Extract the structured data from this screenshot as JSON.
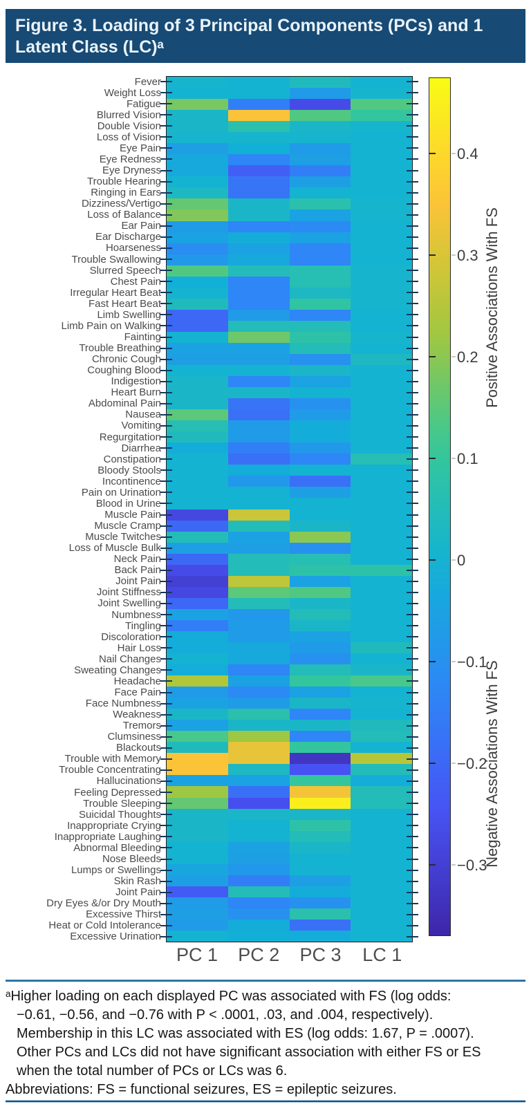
{
  "header": {
    "title_line1": "Figure 3. Loading of 3 Principal Components (PCs) and 1",
    "title_line2": "Latent Class (LC)ᵃ"
  },
  "chart_data": {
    "type": "heatmap",
    "title": "Loading of 3 Principal Components (PCs) and 1 Latent Class (LC)",
    "columns": [
      "PC 1",
      "PC 2",
      "PC 3",
      "LC 1"
    ],
    "rows": [
      "Fever",
      "Weight Loss",
      "Fatigue",
      "Blurred Vision",
      "Double Vision",
      "Loss of Vision",
      "Eye Pain",
      "Eye Redness",
      "Eye Dryness",
      "Trouble Hearing",
      "Ringing in Ears",
      "Dizziness/Vertigo",
      "Loss of Balance",
      "Ear Pain",
      "Ear Discharge",
      "Hoarseness",
      "Trouble Swallowing",
      "Slurred Speech",
      "Chest Pain",
      "Irregular Heart Beat",
      "Fast Heart Beat",
      "Limb Swelling",
      "Limb Pain on Walking",
      "Fainting",
      "Trouble Breathing",
      "Chronic Cough",
      "Coughing Blood",
      "Indigestion",
      "Heart Burn",
      "Abdominal Pain",
      "Nausea",
      "Vomiting",
      "Regurgitation",
      "Diarrhea",
      "Constipation",
      "Bloody Stools",
      "Incontinence",
      "Pain on Urination",
      "Blood in Urine",
      "Muscle Pain",
      "Muscle Cramp",
      "Muscle Twitches",
      "Loss of Muscle Bulk",
      "Neck Pain",
      "Back Pain",
      "Joint Pain",
      "Joint Stiffness",
      "Joint Swelling",
      "Numbness",
      "Tingling",
      "Discoloration",
      "Hair Loss",
      "Nail Changes",
      "Sweating Changes",
      "Headache",
      "Face Pain",
      "Face Numbness",
      "Weakness",
      "Tremors",
      "Clumsiness",
      "Blackouts",
      "Trouble with Memory",
      "Trouble Concentrating",
      "Hallucinations",
      "Feeling Depressed",
      "Trouble Sleeping",
      "Suicidal Thoughts",
      "Inappropriate Crying",
      "Inappropriate Laughing",
      "Abnormal Bleeding",
      "Nose Bleeds",
      "Lumps or Swellings",
      "Skin Rash",
      "Joint Pain",
      "Dry Eyes &/or Dry Mouth",
      "Excessive Thirst",
      "Heat or Cold Intolerance",
      "Excessive Urination"
    ],
    "values": [
      [
        0.01,
        0.0,
        0.04,
        0.0
      ],
      [
        0.0,
        0.0,
        -0.07,
        0.01
      ],
      [
        0.18,
        -0.15,
        -0.27,
        0.14
      ],
      [
        0.02,
        0.35,
        0.14,
        0.1
      ],
      [
        0.02,
        0.07,
        0.02,
        0.01
      ],
      [
        0.01,
        0.01,
        0.01,
        0.0
      ],
      [
        -0.06,
        -0.01,
        -0.07,
        0.0
      ],
      [
        -0.03,
        -0.13,
        -0.06,
        0.0
      ],
      [
        -0.03,
        -0.22,
        -0.15,
        0.0
      ],
      [
        0.0,
        -0.17,
        -0.06,
        0.0
      ],
      [
        0.03,
        -0.17,
        0.0,
        0.0
      ],
      [
        0.16,
        0.02,
        0.07,
        0.01
      ],
      [
        0.19,
        0.02,
        -0.05,
        0.01
      ],
      [
        -0.07,
        -0.13,
        -0.12,
        0.0
      ],
      [
        -0.05,
        -0.02,
        -0.05,
        0.0
      ],
      [
        -0.11,
        -0.05,
        -0.13,
        0.0
      ],
      [
        -0.08,
        -0.03,
        -0.13,
        0.0
      ],
      [
        0.14,
        0.05,
        0.06,
        0.01
      ],
      [
        -0.01,
        -0.13,
        0.06,
        0.01
      ],
      [
        0.0,
        -0.13,
        0.03,
        0.01
      ],
      [
        0.04,
        -0.13,
        0.09,
        0.01
      ],
      [
        -0.2,
        -0.07,
        -0.13,
        0.0
      ],
      [
        -0.2,
        0.05,
        0.05,
        0.0
      ],
      [
        0.0,
        0.17,
        0.08,
        0.01
      ],
      [
        -0.05,
        -0.05,
        0.05,
        0.0
      ],
      [
        -0.06,
        -0.06,
        -0.1,
        0.03
      ],
      [
        0.0,
        0.0,
        0.02,
        0.0
      ],
      [
        0.02,
        -0.13,
        -0.05,
        0.0
      ],
      [
        0.02,
        0.02,
        0.0,
        0.0
      ],
      [
        0.02,
        -0.17,
        -0.1,
        0.0
      ],
      [
        0.15,
        -0.18,
        -0.07,
        0.0
      ],
      [
        0.06,
        -0.07,
        -0.02,
        0.0
      ],
      [
        0.04,
        -0.07,
        -0.02,
        0.0
      ],
      [
        -0.02,
        -0.15,
        -0.08,
        0.0
      ],
      [
        0.0,
        -0.18,
        -0.13,
        0.06
      ],
      [
        0.0,
        -0.02,
        0.0,
        0.0
      ],
      [
        0.0,
        -0.08,
        -0.18,
        0.0
      ],
      [
        0.0,
        0.0,
        -0.06,
        0.0
      ],
      [
        0.0,
        0.0,
        0.0,
        0.0
      ],
      [
        -0.28,
        0.28,
        0.0,
        0.0
      ],
      [
        -0.2,
        0.05,
        0.02,
        0.0
      ],
      [
        0.05,
        -0.05,
        0.2,
        0.0
      ],
      [
        -0.06,
        -0.06,
        -0.1,
        0.0
      ],
      [
        -0.2,
        0.05,
        0.06,
        0.0
      ],
      [
        -0.27,
        0.05,
        0.08,
        0.08
      ],
      [
        -0.3,
        0.26,
        -0.05,
        0.0
      ],
      [
        -0.28,
        0.15,
        0.14,
        0.0
      ],
      [
        -0.2,
        0.05,
        0.02,
        0.0
      ],
      [
        -0.05,
        -0.08,
        0.05,
        0.0
      ],
      [
        -0.15,
        -0.07,
        0.02,
        0.0
      ],
      [
        -0.02,
        -0.07,
        -0.05,
        0.0
      ],
      [
        -0.02,
        -0.03,
        -0.07,
        0.04
      ],
      [
        0.0,
        -0.03,
        -0.1,
        0.0
      ],
      [
        -0.02,
        -0.13,
        0.05,
        0.02
      ],
      [
        0.24,
        -0.05,
        0.1,
        0.13
      ],
      [
        -0.07,
        -0.12,
        -0.05,
        0.0
      ],
      [
        -0.05,
        -0.07,
        0.02,
        0.01
      ],
      [
        0.02,
        0.07,
        -0.13,
        0.0
      ],
      [
        -0.05,
        0.02,
        0.02,
        0.04
      ],
      [
        0.13,
        0.22,
        -0.13,
        0.05
      ],
      [
        0.04,
        0.32,
        0.1,
        0.0
      ],
      [
        0.35,
        0.32,
        -0.33,
        0.25
      ],
      [
        0.35,
        0.03,
        -0.25,
        0.05
      ],
      [
        -0.05,
        -0.05,
        0.1,
        -0.02
      ],
      [
        0.22,
        -0.18,
        0.34,
        0.05
      ],
      [
        0.16,
        -0.26,
        0.45,
        0.05
      ],
      [
        0.02,
        0.02,
        0.02,
        0.0
      ],
      [
        0.02,
        0.0,
        0.08,
        0.0
      ],
      [
        0.02,
        0.0,
        0.05,
        0.0
      ],
      [
        0.0,
        -0.05,
        0.02,
        0.0
      ],
      [
        0.0,
        -0.06,
        0.0,
        0.0
      ],
      [
        -0.04,
        -0.08,
        0.0,
        0.0
      ],
      [
        -0.06,
        -0.15,
        -0.06,
        0.0
      ],
      [
        -0.23,
        0.05,
        -0.02,
        0.0
      ],
      [
        -0.07,
        -0.13,
        -0.1,
        0.0
      ],
      [
        -0.06,
        -0.1,
        0.07,
        0.0
      ],
      [
        -0.07,
        -0.02,
        -0.18,
        0.0
      ],
      [
        0.0,
        -0.01,
        -0.02,
        0.0
      ]
    ],
    "colormap": "parula",
    "vmin": -0.37,
    "vmax": 0.475,
    "grid": false,
    "legend_position": "right-colorbar",
    "colorbar_tick_labels": [
      "0.4",
      "0.3",
      "0.2",
      "0.1",
      "0",
      "−0.1",
      "−0.2",
      "−0.3"
    ],
    "colorbar_tick_values": [
      0.4,
      0.3,
      0.2,
      0.1,
      0,
      -0.1,
      -0.2,
      -0.3
    ],
    "colorbar_label_positive": "Positive Associations With FS",
    "colorbar_label_negative": "Negative Associations With FS"
  },
  "footnote": {
    "lines": [
      "ᵃHigher loading on each displayed PC was associated with FS (log odds:",
      "−0.61, −0.56, and −0.76 with P < .0001, .03, and .004, respectively).",
      "Membership in this LC was associated with ES (log odds: 1.67, P = .0007).",
      "Other PCs and LCs did not have significant association with either FS or ES",
      "when the total number of PCs or LCs was 6.",
      "Abbreviations: FS = functional seizures, ES = epileptic seizures."
    ]
  },
  "colors": {
    "title_bar_bg": "#174a74",
    "title_text": "#e9f2f9",
    "rule_blue": "#2e74a8",
    "axis_text": "#4d4d4d",
    "tick_color": "#15365c"
  }
}
